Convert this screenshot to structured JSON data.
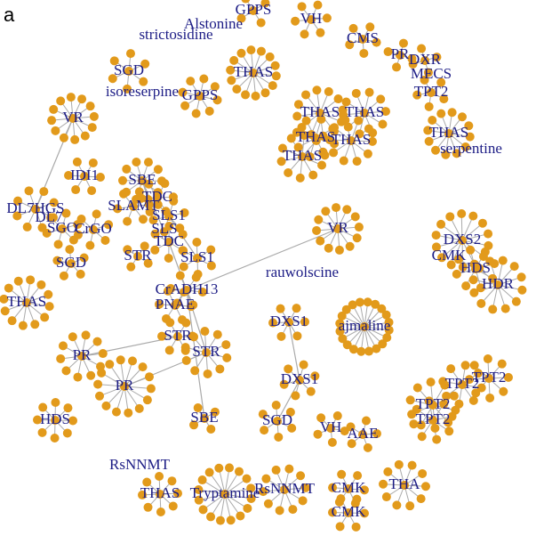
{
  "panel_label": "a",
  "nodes": [
    {
      "label": "Alstonine"
    },
    {
      "label": "GPPS"
    },
    {
      "label": "VH"
    },
    {
      "label": "strictosidine"
    },
    {
      "label": "CMS"
    },
    {
      "label": "PR"
    },
    {
      "label": "DXR"
    },
    {
      "label": "MECS"
    },
    {
      "label": "TPT2"
    },
    {
      "label": "SGD"
    },
    {
      "label": "THAS"
    },
    {
      "label": "isoreserpine"
    },
    {
      "label": "GPPS"
    },
    {
      "label": "VR"
    },
    {
      "label": "THAS"
    },
    {
      "label": "THAS"
    },
    {
      "label": "THAS"
    },
    {
      "label": "THAS"
    },
    {
      "label": "THAS"
    },
    {
      "label": "THAS"
    },
    {
      "label": "serpentine"
    },
    {
      "label": "IDI1"
    },
    {
      "label": "SBE"
    },
    {
      "label": "TDC"
    },
    {
      "label": "DL7HGS"
    },
    {
      "label": "SLAMT"
    },
    {
      "label": "DL7"
    },
    {
      "label": "SLS1"
    },
    {
      "label": "SGO"
    },
    {
      "label": "CrGO"
    },
    {
      "label": "SLS"
    },
    {
      "label": "SGD"
    },
    {
      "label": "STR"
    },
    {
      "label": "TDC"
    },
    {
      "label": "SLS1"
    },
    {
      "label": "VR"
    },
    {
      "label": "rauwolscine"
    },
    {
      "label": "DXS2"
    },
    {
      "label": "CMK"
    },
    {
      "label": "HDS"
    },
    {
      "label": "HDR"
    },
    {
      "label": "THAS"
    },
    {
      "label": "CrADH13"
    },
    {
      "label": "PNAE"
    },
    {
      "label": "STR"
    },
    {
      "label": "DXS1"
    },
    {
      "label": "ajmaline"
    },
    {
      "label": "PR"
    },
    {
      "label": "STR"
    },
    {
      "label": "PR"
    },
    {
      "label": "DXS1"
    },
    {
      "label": "TPT2"
    },
    {
      "label": "TPT2"
    },
    {
      "label": "TPT2"
    },
    {
      "label": "TPT2"
    },
    {
      "label": "HDS"
    },
    {
      "label": "SBE"
    },
    {
      "label": "SGD"
    },
    {
      "label": "VH"
    },
    {
      "label": "AAE"
    },
    {
      "label": "RsNNMT"
    },
    {
      "label": "THA"
    },
    {
      "label": "THAS"
    },
    {
      "label": "Tryptamine"
    },
    {
      "label": "RsNNMT"
    },
    {
      "label": "CMK"
    },
    {
      "label": "CMK"
    }
  ]
}
